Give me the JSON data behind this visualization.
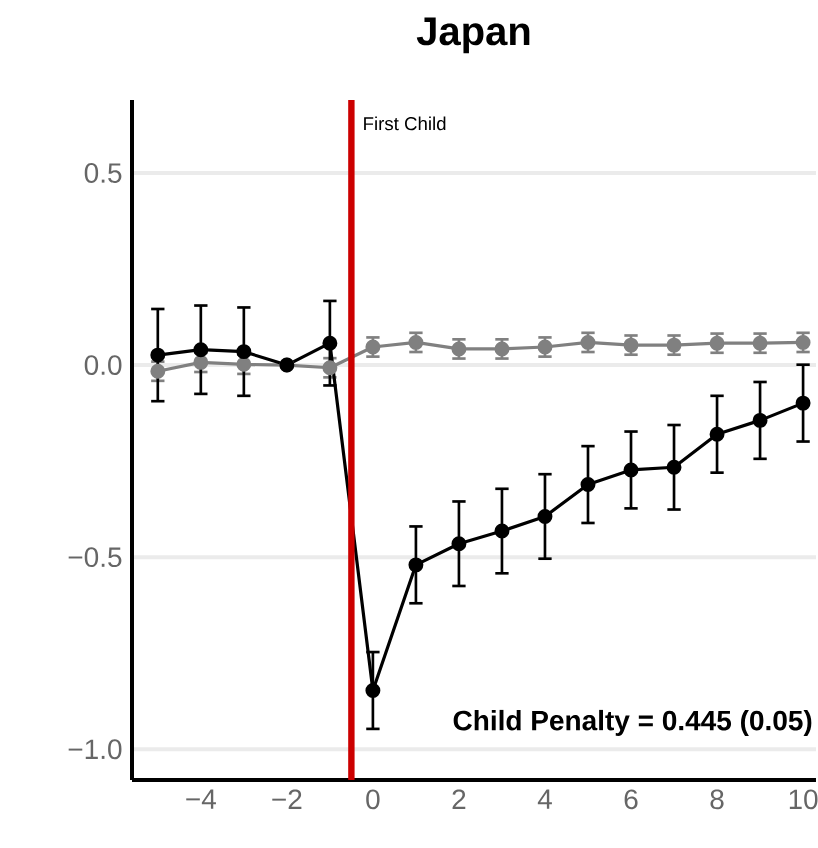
{
  "chart_data": {
    "type": "line",
    "title": "Japan",
    "x": [
      -5,
      -4,
      -3,
      -2,
      -1,
      0,
      1,
      2,
      3,
      4,
      5,
      6,
      7,
      8,
      9,
      10
    ],
    "series": [
      {
        "color": "#808080",
        "values": [
          -0.016,
          0.007,
          0.002,
          0,
          -0.007,
          0.047,
          0.059,
          0.042,
          0.042,
          0.047,
          0.059,
          0.052,
          0.052,
          0.057,
          0.057,
          0.059
        ],
        "errors": [
          0.025,
          0.025,
          0.025,
          null,
          0.025,
          0.025,
          0.025,
          0.025,
          0.025,
          0.025,
          0.025,
          0.025,
          0.025,
          0.025,
          0.025,
          0.025
        ]
      },
      {
        "color": "#000000",
        "values": [
          0.026,
          0.04,
          0.035,
          0,
          0.057,
          -0.847,
          -0.52,
          -0.465,
          -0.432,
          -0.394,
          -0.311,
          -0.273,
          -0.266,
          -0.18,
          -0.144,
          -0.099
        ],
        "errors": [
          0.12,
          0.115,
          0.115,
          null,
          0.11,
          0.1,
          0.1,
          0.11,
          0.11,
          0.11,
          0.1,
          0.1,
          0.11,
          0.1,
          0.1,
          0.1
        ]
      }
    ],
    "xlim": [
      -5.6,
      10.3
    ],
    "ylim": [
      -1.08,
      0.69
    ],
    "xticks": [
      {
        "value": -4,
        "label": "−4"
      },
      {
        "value": -2,
        "label": "−2"
      },
      0,
      2,
      4,
      6,
      8,
      10
    ],
    "yticks": [
      {
        "value": -1,
        "label": "−1.0"
      },
      {
        "value": -0.5,
        "label": "−0.5"
      },
      {
        "value": 0,
        "label": "0.0"
      },
      0.5
    ],
    "grid": "y",
    "marker": "circle",
    "line_style": "solid",
    "ref_lines": [
      {
        "axis": "x",
        "value": -0.5,
        "label": "First Child",
        "color": "#cc0000"
      }
    ],
    "annotations": [
      "**Child Penalty = 0.445 (0.05)**"
    ]
  }
}
